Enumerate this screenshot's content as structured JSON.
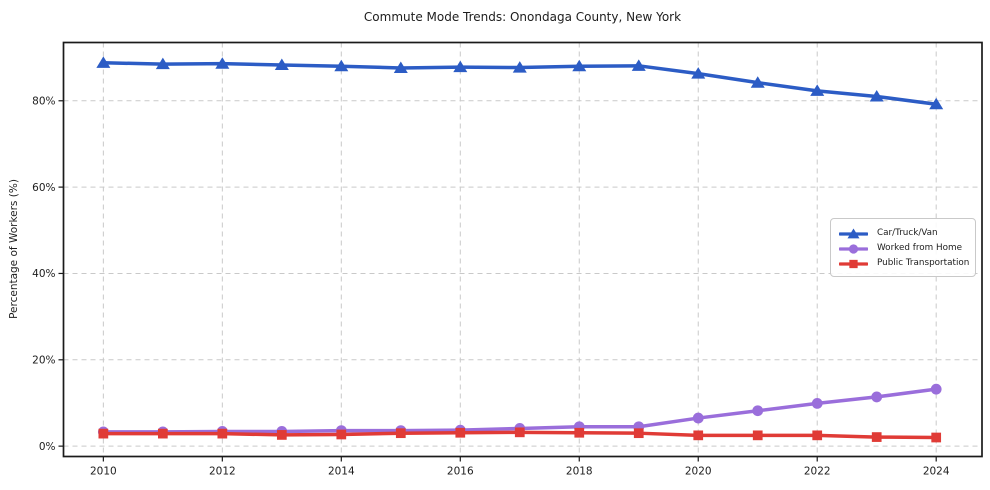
{
  "chart_data": {
    "type": "line",
    "title": "Commute Mode Trends: Onondaga County, New York",
    "xlabel": "",
    "ylabel": "Percentage of Workers (%)",
    "x": [
      2010,
      2011,
      2012,
      2013,
      2014,
      2015,
      2016,
      2017,
      2018,
      2019,
      2020,
      2021,
      2022,
      2023,
      2024
    ],
    "series": [
      {
        "name": "Car/Truck/Van",
        "color": "#2c5cc5",
        "marker": "triangle",
        "values": [
          88.8,
          88.5,
          88.6,
          88.3,
          88.0,
          87.6,
          87.8,
          87.7,
          88.0,
          88.1,
          86.3,
          84.2,
          82.3,
          81.0,
          79.2
        ]
      },
      {
        "name": "Worked from Home",
        "color": "#9a6edb",
        "marker": "circle",
        "values": [
          3.3,
          3.3,
          3.4,
          3.4,
          3.6,
          3.6,
          3.7,
          4.1,
          4.5,
          4.5,
          6.5,
          8.2,
          9.9,
          11.4,
          13.2
        ]
      },
      {
        "name": "Public Transportation",
        "color": "#e03b36",
        "marker": "square",
        "values": [
          2.9,
          2.9,
          2.9,
          2.6,
          2.7,
          3.0,
          3.1,
          3.2,
          3.1,
          3.0,
          2.5,
          2.5,
          2.5,
          2.1,
          2.0
        ]
      }
    ],
    "xticks": [
      2010,
      2012,
      2014,
      2016,
      2018,
      2020,
      2022,
      2024
    ],
    "yticks": [
      0,
      20,
      40,
      60,
      80
    ],
    "ytick_labels": [
      "0%",
      "20%",
      "40%",
      "60%",
      "80%"
    ],
    "xlim": [
      2009.33,
      2024.77
    ],
    "ylim": [
      -2.4,
      93.5
    ],
    "grid": true,
    "grid_style": "dashed",
    "grid_color": "#c9c9c9",
    "spine_color": "#1a1a1a",
    "legend_position": "center right"
  }
}
